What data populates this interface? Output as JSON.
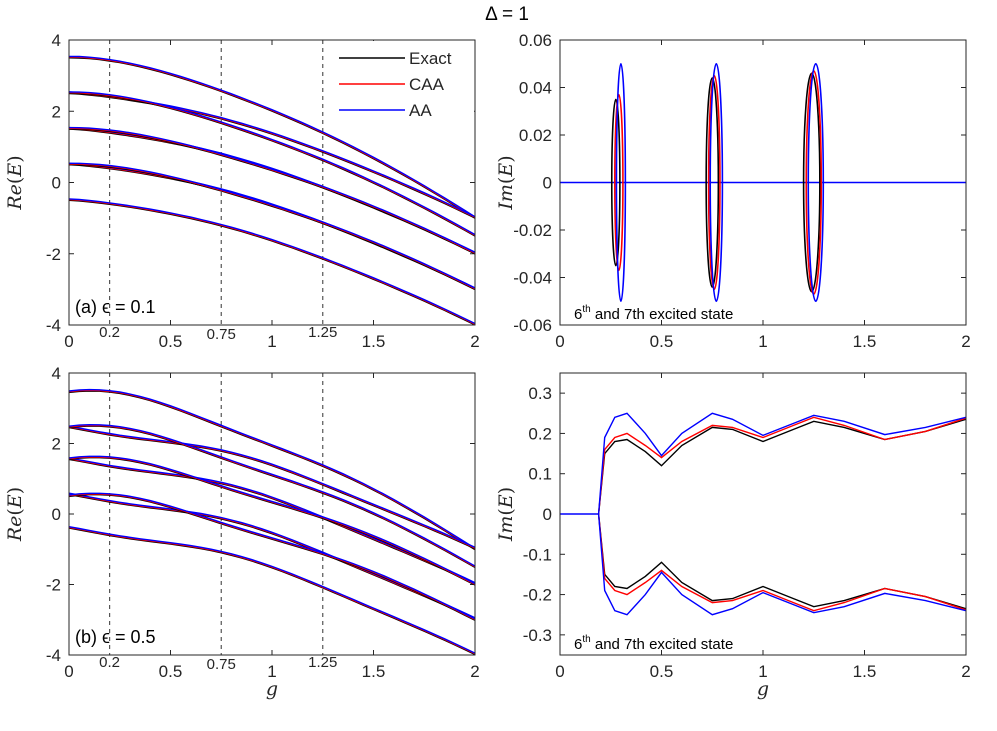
{
  "figure_title": "Δ = 1",
  "legend": {
    "entries": [
      {
        "label": "Exact",
        "color": "#000000"
      },
      {
        "label": "CAA",
        "color": "#ff0000"
      },
      {
        "label": "AA",
        "color": "#0000ff"
      }
    ]
  },
  "chart_data": [
    {
      "id": "a-left",
      "type": "line",
      "ylabel": "Re(E)",
      "xlabel": "",
      "xlim": [
        0,
        2
      ],
      "ylim": [
        -4,
        4
      ],
      "xticks": [
        "0",
        "0.5",
        "1",
        "1.5",
        "2"
      ],
      "yticks": [
        "4",
        "2",
        "0",
        "-2",
        "-4"
      ],
      "extra_xticks": [
        "0.2",
        "0.75",
        "1.25"
      ],
      "extra_xtick_values": [
        0.2,
        0.75,
        1.25
      ],
      "dashed_lines_x": [
        0.2,
        0.75,
        1.25
      ],
      "annotation": "(a)",
      "epsilon_label": "ϵ = 0.1",
      "epsilon": 0.1,
      "levels_at_g0": [
        3.5,
        2.5,
        1.5,
        0.5,
        -0.5
      ],
      "note": "Energy levels n+0.5±ε/2 merging in pairs and decreasing with g; curves end at x=2 near 0, -1, -2, -3, -4"
    },
    {
      "id": "a-right",
      "type": "line",
      "ylabel": "Im(E)",
      "xlim": [
        0,
        2
      ],
      "ylim": [
        -0.06,
        0.06
      ],
      "xticks": [
        "0",
        "0.5",
        "1",
        "1.5",
        "2"
      ],
      "yticks": [
        "0.06",
        "0.04",
        "0.02",
        "0",
        "-0.02",
        "-0.04",
        "-0.06"
      ],
      "caption_sup": "th",
      "caption_pre": "6",
      "caption_post": " and 7th excited state",
      "loops": [
        {
          "series": "Exact",
          "center": 0.275,
          "half_width": 0.02,
          "amp": 0.035
        },
        {
          "series": "CAA",
          "center": 0.29,
          "half_width": 0.02,
          "amp": 0.037
        },
        {
          "series": "AA",
          "center": 0.3,
          "half_width": 0.022,
          "amp": 0.05
        },
        {
          "series": "Exact",
          "center": 0.75,
          "half_width": 0.03,
          "amp": 0.044
        },
        {
          "series": "CAA",
          "center": 0.76,
          "half_width": 0.028,
          "amp": 0.045
        },
        {
          "series": "AA",
          "center": 0.77,
          "half_width": 0.03,
          "amp": 0.05
        },
        {
          "series": "Exact",
          "center": 1.24,
          "half_width": 0.04,
          "amp": 0.046
        },
        {
          "series": "CAA",
          "center": 1.25,
          "half_width": 0.037,
          "amp": 0.047
        },
        {
          "series": "AA",
          "center": 1.26,
          "half_width": 0.037,
          "amp": 0.05
        }
      ]
    },
    {
      "id": "b-left",
      "type": "line",
      "ylabel": "Re(E)",
      "xlabel": "g",
      "xlim": [
        0,
        2
      ],
      "ylim": [
        -4,
        4
      ],
      "xticks": [
        "0",
        "0.5",
        "1",
        "1.5",
        "2"
      ],
      "yticks": [
        "4",
        "2",
        "0",
        "-2",
        "-4"
      ],
      "extra_xticks": [
        "0.2",
        "0.75",
        "1.25"
      ],
      "extra_xtick_values": [
        0.2,
        0.75,
        1.25
      ],
      "dashed_lines_x": [
        0.2,
        0.75,
        1.25
      ],
      "annotation": "(b)",
      "epsilon_label": "ϵ = 0.5",
      "epsilon": 0.5,
      "levels_at_g0": [
        3.45,
        2.45,
        1.55,
        0.55,
        -0.4
      ]
    },
    {
      "id": "b-right",
      "type": "line",
      "ylabel": "Im(E)",
      "xlabel": "g",
      "xlim": [
        0,
        2
      ],
      "ylim": [
        -0.35,
        0.35
      ],
      "xticks": [
        "0",
        "0.5",
        "1",
        "1.5",
        "2"
      ],
      "yticks": [
        "0.3",
        "0.2",
        "0.1",
        "0",
        "-0.1",
        "-0.2",
        "-0.3"
      ],
      "caption_sup": "th",
      "caption_pre": "6",
      "caption_post": " and 7th excited state",
      "series": [
        {
          "name": "Exact",
          "color": "#000000",
          "x": [
            0.19,
            0.22,
            0.27,
            0.33,
            0.42,
            0.5,
            0.6,
            0.75,
            0.85,
            1.0,
            1.15,
            1.25,
            1.4,
            1.6,
            1.8,
            2.0
          ],
          "y": [
            0.0,
            0.15,
            0.18,
            0.185,
            0.155,
            0.12,
            0.17,
            0.215,
            0.21,
            0.18,
            0.21,
            0.23,
            0.215,
            0.185,
            0.205,
            0.235
          ]
        },
        {
          "name": "CAA",
          "color": "#ff0000",
          "x": [
            0.19,
            0.22,
            0.27,
            0.33,
            0.42,
            0.5,
            0.6,
            0.75,
            0.85,
            1.0,
            1.15,
            1.25,
            1.4,
            1.6,
            1.8,
            2.0
          ],
          "y": [
            0.0,
            0.16,
            0.19,
            0.2,
            0.17,
            0.14,
            0.18,
            0.22,
            0.215,
            0.19,
            0.22,
            0.24,
            0.22,
            0.185,
            0.205,
            0.238
          ]
        },
        {
          "name": "AA",
          "color": "#0000ff",
          "x": [
            0.19,
            0.22,
            0.27,
            0.33,
            0.42,
            0.5,
            0.6,
            0.75,
            0.85,
            1.0,
            1.15,
            1.25,
            1.4,
            1.6,
            1.8,
            2.0
          ],
          "y": [
            0.0,
            0.19,
            0.24,
            0.25,
            0.2,
            0.145,
            0.2,
            0.25,
            0.235,
            0.195,
            0.225,
            0.245,
            0.23,
            0.197,
            0.215,
            0.24
          ]
        }
      ]
    }
  ]
}
